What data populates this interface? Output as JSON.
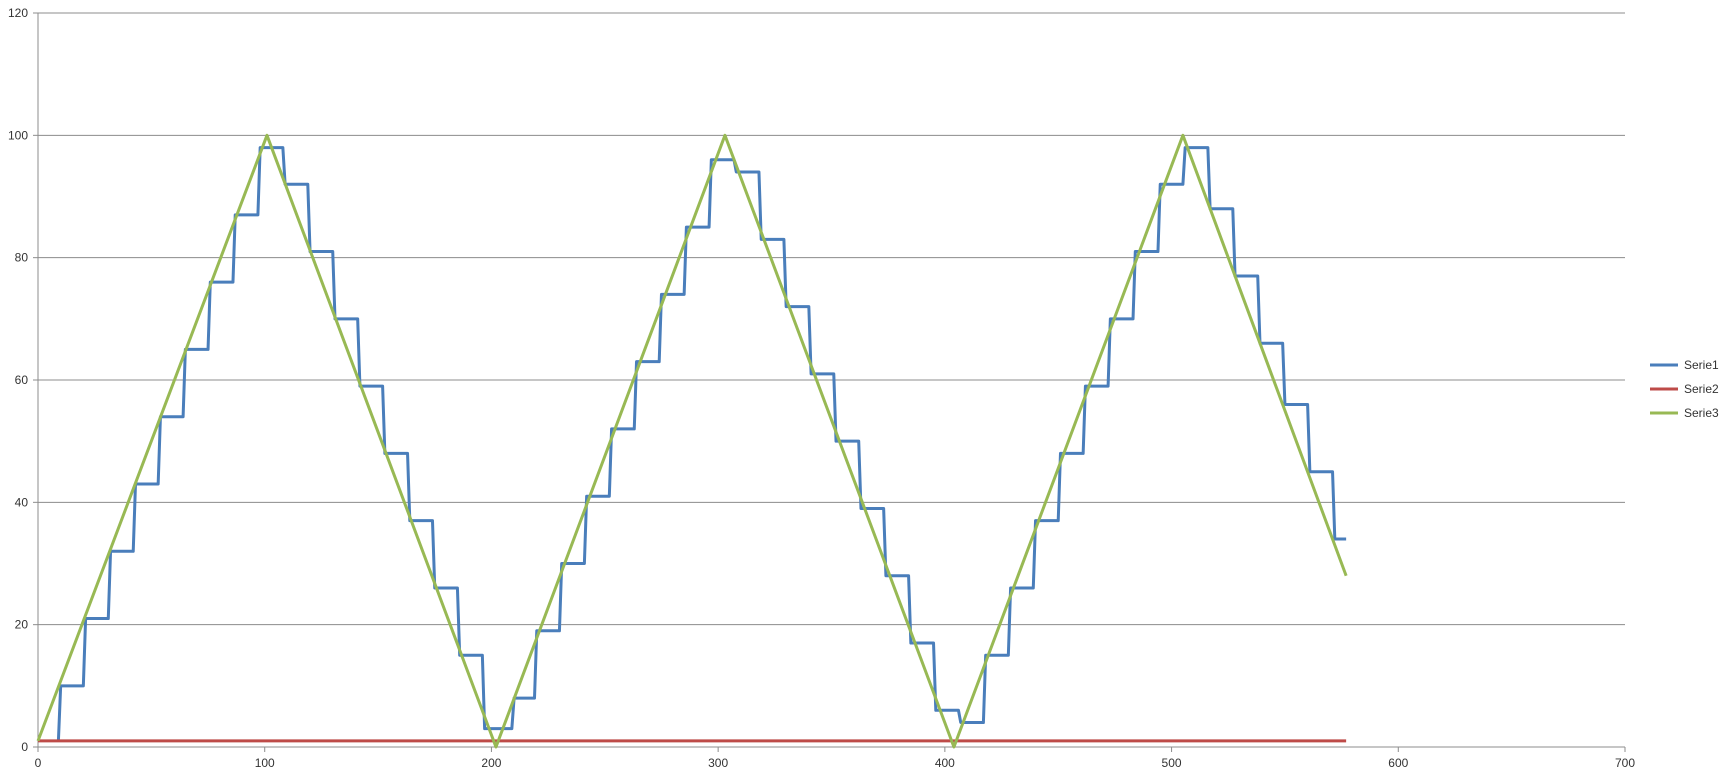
{
  "chart_data": {
    "type": "line",
    "title": "",
    "xlabel": "",
    "ylabel": "",
    "xlim": [
      0,
      700
    ],
    "ylim": [
      0,
      120
    ],
    "x_ticks": [
      0,
      100,
      200,
      300,
      400,
      500,
      600,
      700
    ],
    "y_ticks": [
      0,
      20,
      40,
      60,
      80,
      100,
      120
    ],
    "grid": "horizontal",
    "legend": "right",
    "series": [
      {
        "name": "Serie1",
        "color": "#4a7ebb",
        "shape": "step",
        "points": [
          [
            9,
            1
          ],
          [
            10,
            10
          ],
          [
            20,
            10
          ],
          [
            21,
            21
          ],
          [
            31,
            21
          ],
          [
            32,
            32
          ],
          [
            42,
            32
          ],
          [
            43,
            43
          ],
          [
            53,
            43
          ],
          [
            54,
            54
          ],
          [
            64,
            54
          ],
          [
            65,
            65
          ],
          [
            75,
            65
          ],
          [
            76,
            76
          ],
          [
            86,
            76
          ],
          [
            87,
            87
          ],
          [
            97,
            87
          ],
          [
            98,
            98
          ],
          [
            108,
            98
          ],
          [
            109,
            92
          ],
          [
            119,
            92
          ],
          [
            120,
            81
          ],
          [
            130,
            81
          ],
          [
            131,
            70
          ],
          [
            141,
            70
          ],
          [
            142,
            59
          ],
          [
            152,
            59
          ],
          [
            153,
            48
          ],
          [
            163,
            48
          ],
          [
            164,
            37
          ],
          [
            174,
            37
          ],
          [
            175,
            26
          ],
          [
            185,
            26
          ],
          [
            186,
            15
          ],
          [
            196,
            15
          ],
          [
            197,
            3
          ],
          [
            209,
            3
          ],
          [
            210,
            8
          ],
          [
            219,
            8
          ],
          [
            220,
            19
          ],
          [
            230,
            19
          ],
          [
            231,
            30
          ],
          [
            241,
            30
          ],
          [
            242,
            41
          ],
          [
            252,
            41
          ],
          [
            253,
            52
          ],
          [
            263,
            52
          ],
          [
            264,
            63
          ],
          [
            274,
            63
          ],
          [
            275,
            74
          ],
          [
            285,
            74
          ],
          [
            286,
            85
          ],
          [
            296,
            85
          ],
          [
            297,
            96
          ],
          [
            307,
            96
          ],
          [
            308,
            94
          ],
          [
            318,
            94
          ],
          [
            319,
            83
          ],
          [
            329,
            83
          ],
          [
            330,
            72
          ],
          [
            340,
            72
          ],
          [
            341,
            61
          ],
          [
            351,
            61
          ],
          [
            352,
            50
          ],
          [
            362,
            50
          ],
          [
            363,
            39
          ],
          [
            373,
            39
          ],
          [
            374,
            28
          ],
          [
            384,
            28
          ],
          [
            385,
            17
          ],
          [
            395,
            17
          ],
          [
            396,
            6
          ],
          [
            406,
            6
          ],
          [
            407,
            4
          ],
          [
            417,
            4
          ],
          [
            418,
            15
          ],
          [
            428,
            15
          ],
          [
            429,
            26
          ],
          [
            439,
            26
          ],
          [
            440,
            37
          ],
          [
            450,
            37
          ],
          [
            451,
            48
          ],
          [
            461,
            48
          ],
          [
            462,
            59
          ],
          [
            472,
            59
          ],
          [
            473,
            70
          ],
          [
            483,
            70
          ],
          [
            484,
            81
          ],
          [
            494,
            81
          ],
          [
            495,
            92
          ],
          [
            505,
            92
          ],
          [
            506,
            98
          ],
          [
            516,
            98
          ],
          [
            517,
            88
          ],
          [
            527,
            88
          ],
          [
            528,
            77
          ],
          [
            538,
            77
          ],
          [
            539,
            66
          ],
          [
            549,
            66
          ],
          [
            550,
            56
          ],
          [
            560,
            56
          ],
          [
            561,
            45
          ],
          [
            571,
            45
          ],
          [
            572,
            34
          ],
          [
            577,
            34
          ]
        ]
      },
      {
        "name": "Serie2",
        "color": "#be4b48",
        "shape": "line",
        "points": [
          [
            0,
            1
          ],
          [
            577,
            1
          ]
        ]
      },
      {
        "name": "Serie3",
        "color": "#98b954",
        "shape": "line",
        "points": [
          [
            0,
            1
          ],
          [
            101,
            100
          ],
          [
            202,
            0
          ],
          [
            303,
            100
          ],
          [
            404,
            0
          ],
          [
            505,
            100
          ],
          [
            577,
            28
          ]
        ]
      }
    ]
  }
}
